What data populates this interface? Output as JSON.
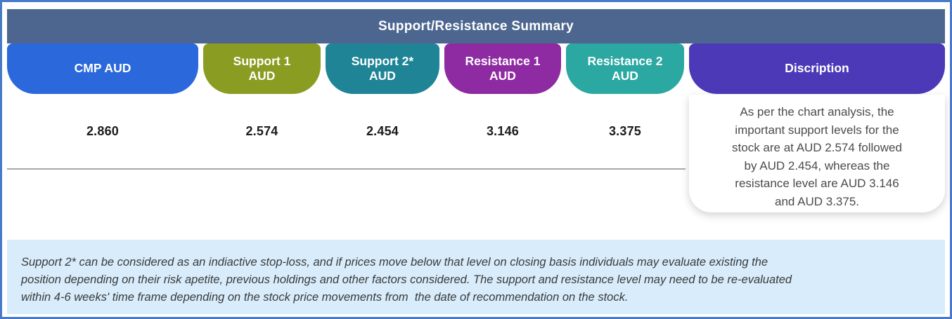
{
  "header": {
    "title": "Support/Resistance Summary",
    "bg_color": "#4d668f"
  },
  "columns": [
    {
      "id": "cmp",
      "line1": "CMP AUD",
      "line2": "",
      "color": "#2b68dc",
      "value": "2.860"
    },
    {
      "id": "support1",
      "line1": "Support 1",
      "line2": "AUD",
      "color": "#8b9c22",
      "value": "2.574"
    },
    {
      "id": "support2",
      "line1": "Support 2*",
      "line2": "AUD",
      "color": "#1f8496",
      "value": "2.454"
    },
    {
      "id": "resistance1",
      "line1": "Resistance 1",
      "line2": "AUD",
      "color": "#8e2ba2",
      "value": "3.146"
    },
    {
      "id": "resistance2",
      "line1": "Resistance 2",
      "line2": "AUD",
      "color": "#2ba8a1",
      "value": "3.375"
    }
  ],
  "description": {
    "header": "Discription",
    "header_color": "#4c39b8",
    "lines": [
      "As per the chart analysis, the",
      "important support levels for the",
      "stock are at AUD 2.574 followed",
      "by AUD 2.454, whereas the",
      "resistance level are AUD 3.146",
      "and AUD 3.375."
    ]
  },
  "note": {
    "bg_color": "#d8ecfb",
    "lines": [
      "Support 2* can be considered as an indiactive stop-loss, and if prices move below that level on closing basis individuals may evaluate existing the",
      "position depending on their risk apetite, previous holdings and other factors considered. The support and resistance level may need to be re-evaluated",
      "within 4-6 weeks' time frame depending on the stock price movements from  the date of recommendation on the stock."
    ]
  },
  "frame": {
    "border_color": "#4679c8"
  }
}
